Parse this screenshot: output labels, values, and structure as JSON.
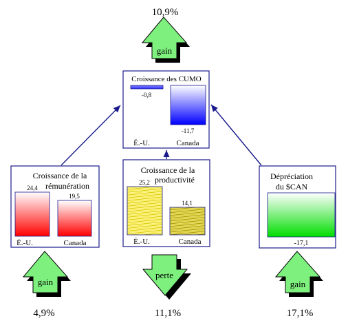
{
  "top_arrow": {
    "label": "gain",
    "value": "10,9%"
  },
  "cumo": {
    "title": "Croissance des CUMO",
    "us_value": "-0,8",
    "ca_value": "-11,7",
    "us_label": "É.-U.",
    "ca_label": "Canada"
  },
  "remuneration": {
    "title_line1": "Croissance de la",
    "title_line2": "rémunération",
    "us_value": "24,4",
    "ca_value": "19,5",
    "us_label": "É.-U.",
    "ca_label": "Canada",
    "arrow_label": "gain",
    "arrow_value": "4,9%"
  },
  "productivite": {
    "title_line1": "Croissance de la",
    "title_line2": "productivité",
    "us_value": "25,2",
    "ca_value": "14,1",
    "us_label": "É.-U.",
    "ca_label": "Canada",
    "arrow_label": "perte",
    "arrow_value": "11,1%"
  },
  "depreciation": {
    "title_line1": "Dépréciation",
    "title_line2": "du $CAN",
    "value": "-17,1",
    "arrow_label": "gain",
    "arrow_value": "17,1%"
  },
  "colors": {
    "frame": "#1a1a8c",
    "arrow_fill": "#7ef07e",
    "arrow_shadow": "#000000",
    "red": "#ff1a1a",
    "blue": "#1a1aff",
    "yellow": "#e8e000",
    "green": "#1ae01a"
  }
}
